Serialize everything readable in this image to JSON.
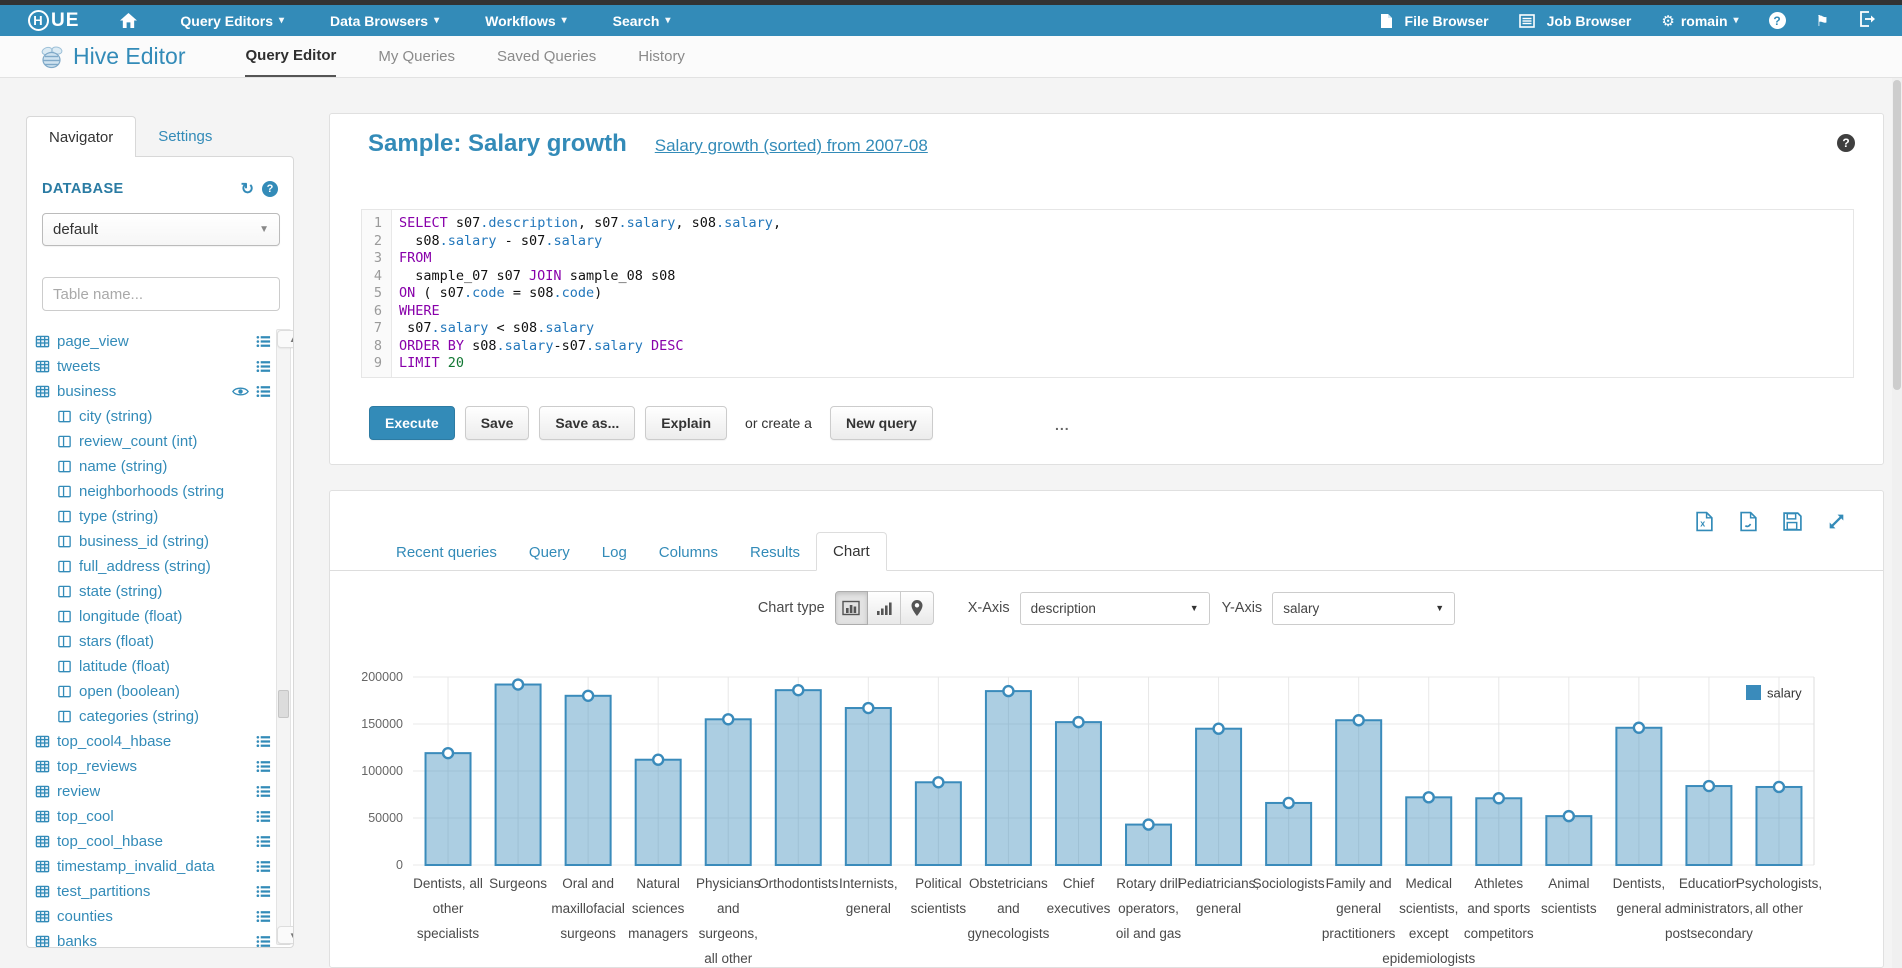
{
  "topnav": {
    "logo": "HUE",
    "menus": [
      {
        "label": "Query Editors"
      },
      {
        "label": "Data Browsers"
      },
      {
        "label": "Workflows"
      },
      {
        "label": "Search"
      }
    ],
    "file_browser": "File Browser",
    "job_browser": "Job Browser",
    "user": "romain"
  },
  "subnav": {
    "app": "Hive Editor",
    "tabs": [
      {
        "label": "Query Editor",
        "active": true
      },
      {
        "label": "My Queries",
        "active": false
      },
      {
        "label": "Saved Queries",
        "active": false
      },
      {
        "label": "History",
        "active": false
      }
    ]
  },
  "sidebar": {
    "tabs": [
      {
        "label": "Navigator",
        "active": true
      },
      {
        "label": "Settings",
        "active": false
      }
    ],
    "section": "DATABASE",
    "db_value": "default",
    "filter_placeholder": "Table name...",
    "items": [
      {
        "label": "page_view",
        "kind": "table",
        "eye": false
      },
      {
        "label": "tweets",
        "kind": "table",
        "eye": false
      },
      {
        "label": "business",
        "kind": "table",
        "eye": true
      },
      {
        "label": "city (string)",
        "kind": "column"
      },
      {
        "label": "review_count (int)",
        "kind": "column"
      },
      {
        "label": "name (string)",
        "kind": "column"
      },
      {
        "label": "neighborhoods (string",
        "kind": "column"
      },
      {
        "label": "type (string)",
        "kind": "column"
      },
      {
        "label": "business_id (string)",
        "kind": "column"
      },
      {
        "label": "full_address (string)",
        "kind": "column"
      },
      {
        "label": "state (string)",
        "kind": "column"
      },
      {
        "label": "longitude (float)",
        "kind": "column"
      },
      {
        "label": "stars (float)",
        "kind": "column"
      },
      {
        "label": "latitude (float)",
        "kind": "column"
      },
      {
        "label": "open (boolean)",
        "kind": "column"
      },
      {
        "label": "categories (string)",
        "kind": "column"
      },
      {
        "label": "top_cool4_hbase",
        "kind": "table",
        "eye": false
      },
      {
        "label": "top_reviews",
        "kind": "table",
        "eye": false
      },
      {
        "label": "review",
        "kind": "table",
        "eye": false
      },
      {
        "label": "top_cool",
        "kind": "table",
        "eye": false
      },
      {
        "label": "top_cool_hbase",
        "kind": "table",
        "eye": false
      },
      {
        "label": "timestamp_invalid_data",
        "kind": "table",
        "eye": false
      },
      {
        "label": "test_partitions",
        "kind": "table",
        "eye": false
      },
      {
        "label": "counties",
        "kind": "table",
        "eye": false
      },
      {
        "label": "banks",
        "kind": "table",
        "eye": false
      }
    ]
  },
  "query": {
    "title": "Sample: Salary growth",
    "subtitle": "Salary growth (sorted) from 2007-08",
    "code": [
      [
        [
          "kw",
          "SELECT"
        ],
        [
          "pl",
          " s07"
        ],
        [
          "pr",
          ".description"
        ],
        [
          "pl",
          ", s07"
        ],
        [
          "pr",
          ".salary"
        ],
        [
          "pl",
          ", s08"
        ],
        [
          "pr",
          ".salary"
        ],
        [
          "pl",
          ","
        ]
      ],
      [
        [
          "pl",
          "  s08"
        ],
        [
          "pr",
          ".salary"
        ],
        [
          "pl",
          " - s07"
        ],
        [
          "pr",
          ".salary"
        ]
      ],
      [
        [
          "kw",
          "FROM"
        ]
      ],
      [
        [
          "pl",
          "  sample_07 s07 "
        ],
        [
          "kw",
          "JOIN"
        ],
        [
          "pl",
          " sample_08 s08"
        ]
      ],
      [
        [
          "kw",
          "ON"
        ],
        [
          "pl",
          " ( s07"
        ],
        [
          "pr",
          ".code"
        ],
        [
          "pl",
          " = s08"
        ],
        [
          "pr",
          ".code"
        ],
        [
          "pl",
          ")"
        ]
      ],
      [
        [
          "kw",
          "WHERE"
        ]
      ],
      [
        [
          "pl",
          " s07"
        ],
        [
          "pr",
          ".salary"
        ],
        [
          "pl",
          " < s08"
        ],
        [
          "pr",
          ".salary"
        ]
      ],
      [
        [
          "kw",
          "ORDER BY"
        ],
        [
          "pl",
          " s08"
        ],
        [
          "pr",
          ".salary"
        ],
        [
          "pl",
          "-s07"
        ],
        [
          "pr",
          ".salary"
        ],
        [
          "pl",
          " "
        ],
        [
          "kw",
          "DESC"
        ]
      ],
      [
        [
          "kw",
          "LIMIT"
        ],
        [
          "nu",
          " 20"
        ]
      ]
    ],
    "buttons": {
      "execute": "Execute",
      "save": "Save",
      "save_as": "Save as...",
      "explain": "Explain",
      "or_text": "or create a",
      "new_query": "New query"
    },
    "grip": "..."
  },
  "results": {
    "tabs": [
      {
        "label": "Recent queries",
        "active": false
      },
      {
        "label": "Query",
        "active": false
      },
      {
        "label": "Log",
        "active": false
      },
      {
        "label": "Columns",
        "active": false
      },
      {
        "label": "Results",
        "active": false
      },
      {
        "label": "Chart",
        "active": true
      }
    ]
  },
  "chart_controls": {
    "label": "Chart type",
    "x_label": "X-Axis",
    "x_value": "description",
    "y_label": "Y-Axis",
    "y_value": "salary"
  },
  "chart_data": {
    "type": "bar",
    "title": "",
    "xlabel": "description",
    "ylabel": "salary",
    "legend": [
      "salary"
    ],
    "legend_position": "top-right",
    "grid": true,
    "ylim": [
      0,
      200000
    ],
    "yticks": [
      0,
      50000,
      100000,
      150000,
      200000
    ],
    "categories": [
      "Dentists, all other specialists",
      "Surgeons",
      "Oral and maxillofacial surgeons",
      "Natural sciences managers",
      "Physicians and surgeons, all other",
      "Orthodontists",
      "Internists, general",
      "Political scientists",
      "Obstetricians and gynecologists",
      "Chief executives",
      "Rotary drill operators, oil and gas",
      "Pediatricians, general",
      "Sociologists",
      "Family and general practitioners",
      "Medical scientists, except epidemiologists",
      "Athletes and sports competitors",
      "Animal scientists",
      "Dentists, general",
      "Education administrators, postsecondary",
      "Psychologists, all other"
    ],
    "label_lines": [
      [
        "Dentists, all",
        "other",
        "specialists"
      ],
      [
        "Surgeons"
      ],
      [
        "Oral and",
        "maxillofacial",
        "surgeons"
      ],
      [
        "Natural",
        "sciences",
        "managers"
      ],
      [
        "Physicians",
        "and",
        "surgeons,",
        "all other"
      ],
      [
        "Orthodontists"
      ],
      [
        "Internists,",
        "general"
      ],
      [
        "Political",
        "scientists"
      ],
      [
        "Obstetricians",
        "and",
        "gynecologists"
      ],
      [
        "Chief",
        "executives"
      ],
      [
        "Rotary drill",
        "operators,",
        "oil and gas"
      ],
      [
        "Pediatricians,",
        "general"
      ],
      [
        "Sociologists"
      ],
      [
        "Family and",
        "general",
        "practitioners"
      ],
      [
        "Medical",
        "scientists,",
        "except",
        "epidemiologists"
      ],
      [
        "Athletes",
        "and sports",
        "competitors"
      ],
      [
        "Animal",
        "scientists"
      ],
      [
        "Dentists,",
        "general"
      ],
      [
        "Education",
        "administrators,",
        "postsecondary"
      ],
      [
        "Psychologists,",
        "all other"
      ]
    ],
    "values": [
      119000,
      192000,
      180000,
      112000,
      155000,
      186000,
      167000,
      88000,
      185000,
      152000,
      43000,
      145000,
      66000,
      154000,
      72000,
      71000,
      52000,
      146000,
      84000,
      83000
    ],
    "colors": {
      "bar_fill": "#3a8bbb",
      "bar_fill_opacity": 0.42,
      "bar_stroke": "#3a8bbb",
      "marker_fill": "#ffffff",
      "legend_swatch": "#3a8bbb",
      "accent": "#338bb8"
    }
  }
}
